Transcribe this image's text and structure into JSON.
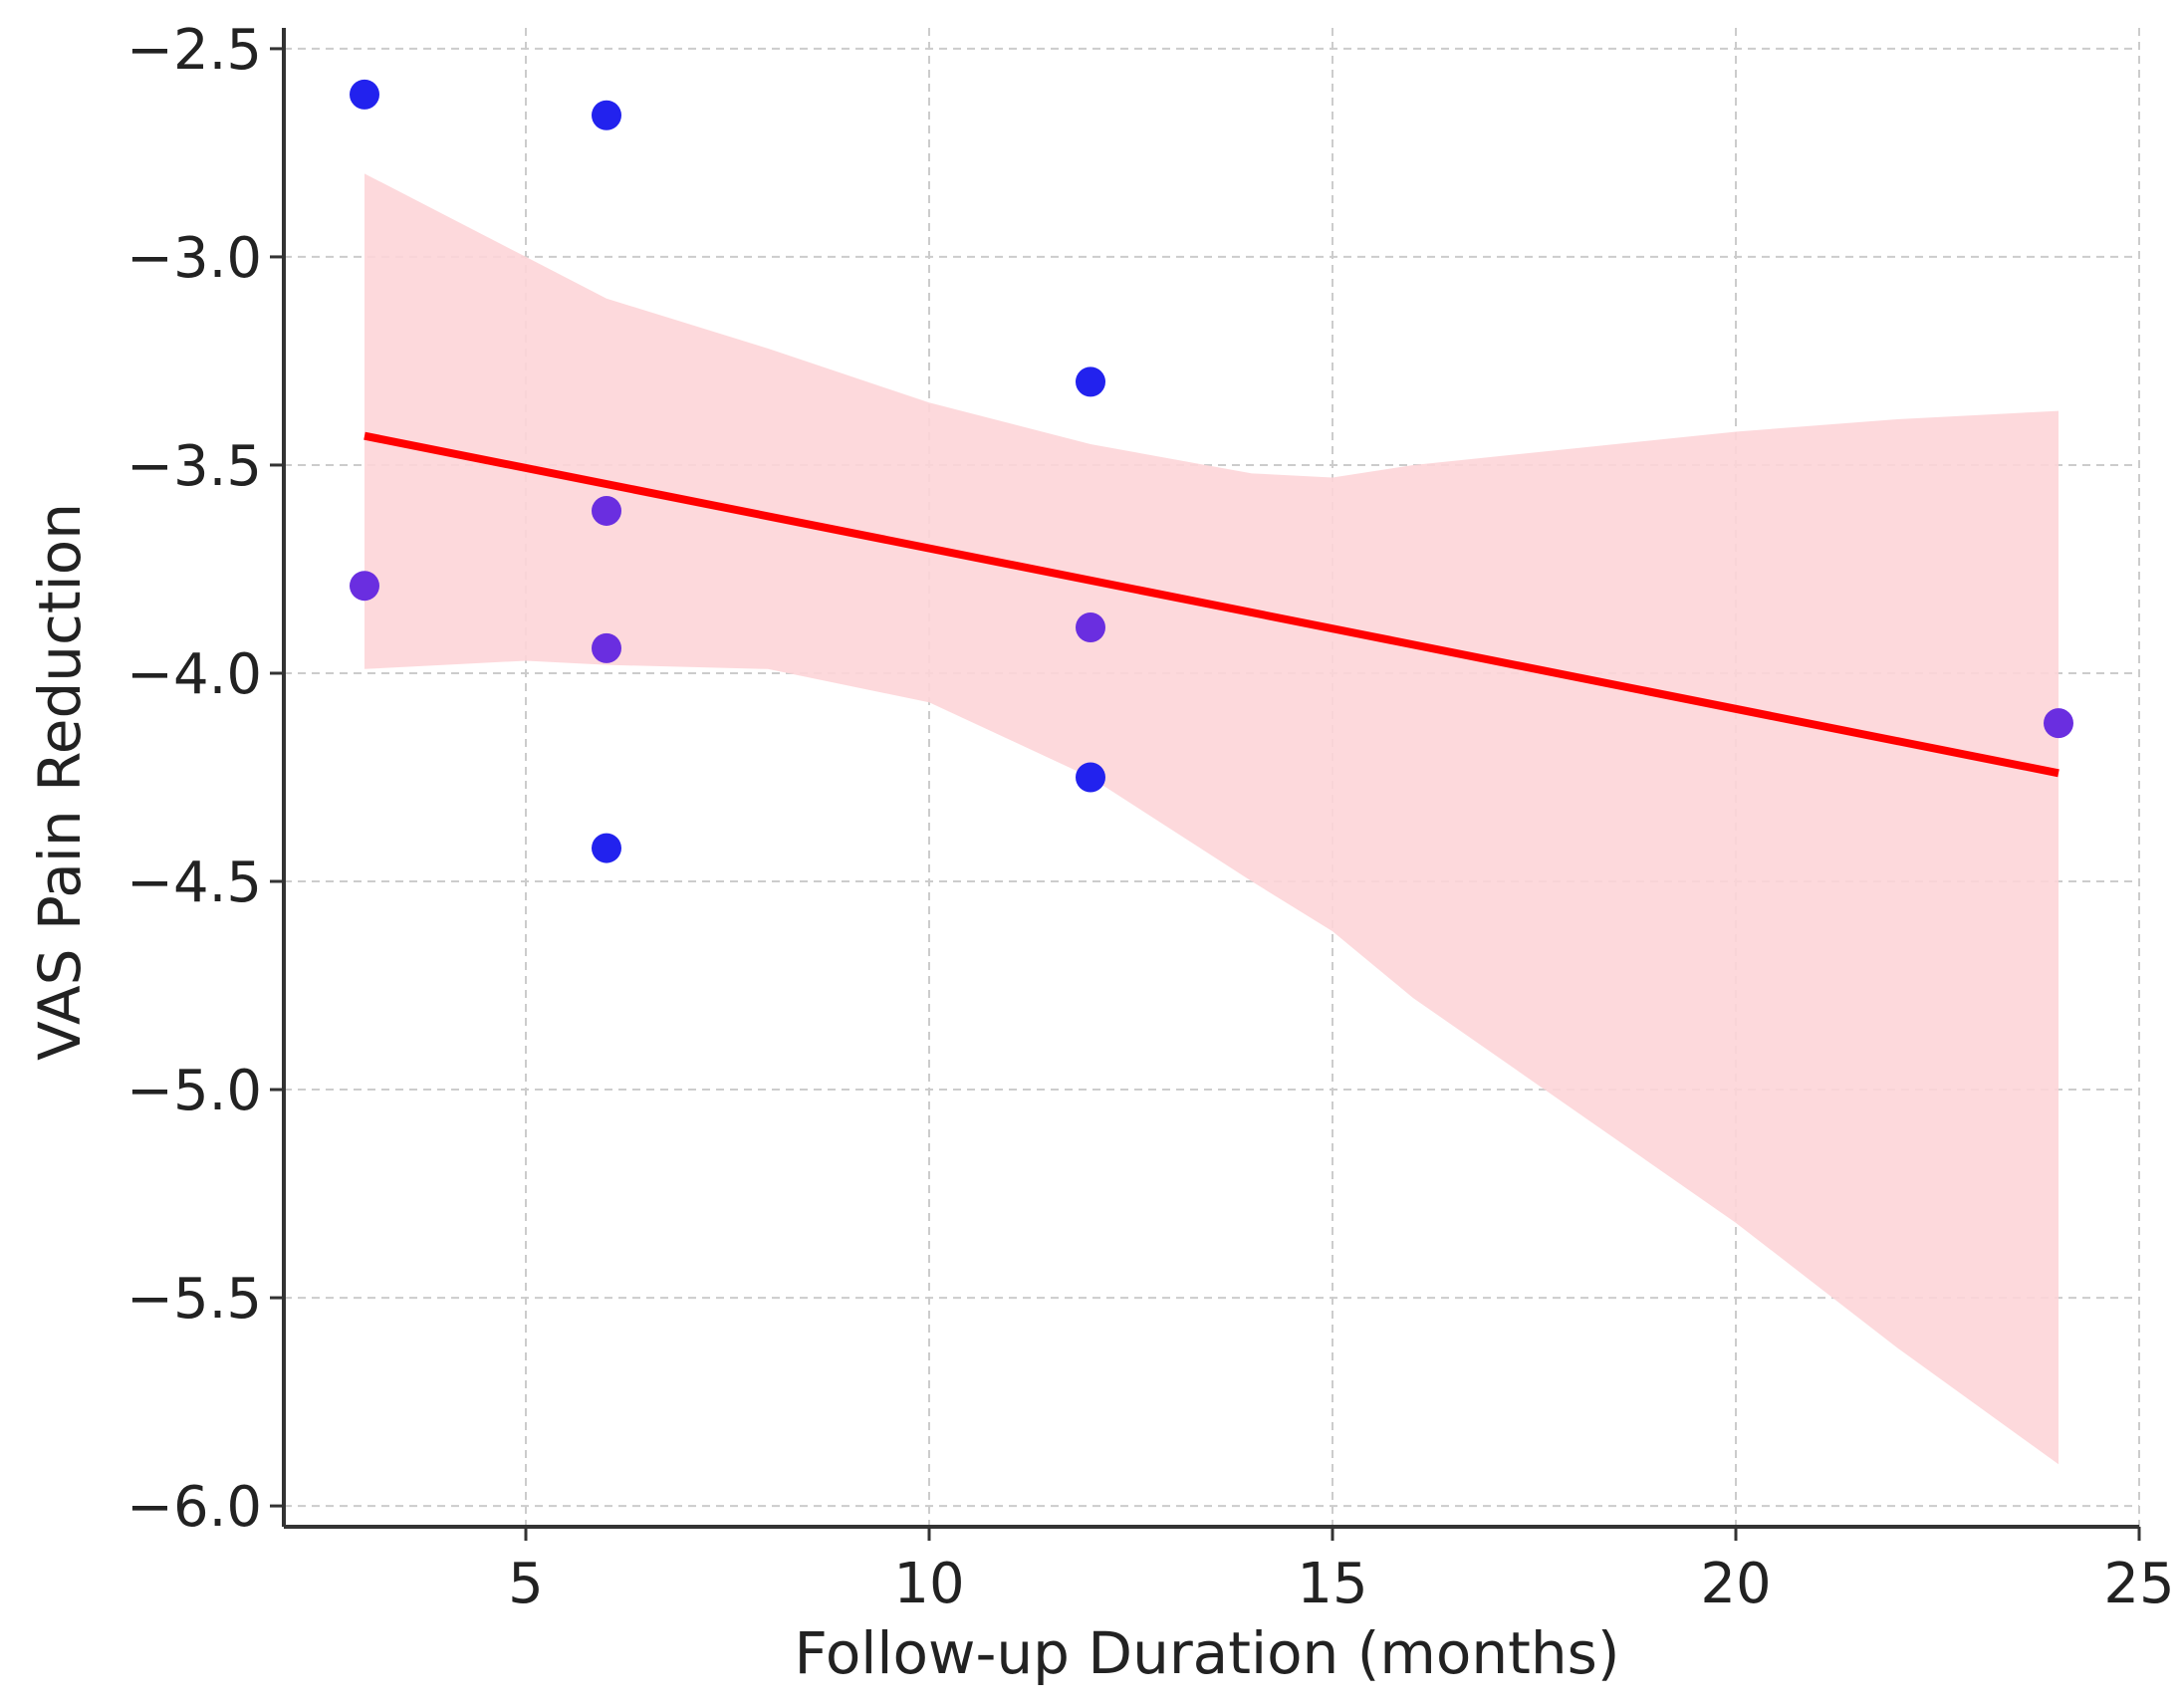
{
  "chart_data": {
    "type": "scatter",
    "title": "",
    "xlabel": "Follow-up Duration (months)",
    "ylabel": "VAS Pain Reduction",
    "xlim": [
      2,
      25
    ],
    "ylim": [
      -6.05,
      -2.45
    ],
    "xticks": [
      5,
      10,
      15,
      20,
      25
    ],
    "yticks": [
      -2.5,
      -3.0,
      -3.5,
      -4.0,
      -4.5,
      -5.0,
      -5.5,
      -6.0
    ],
    "xtick_labels": [
      "5",
      "10",
      "15",
      "20",
      "25"
    ],
    "ytick_labels": [
      "−2.5",
      "−3.0",
      "−3.5",
      "−4.0",
      "−4.5",
      "−5.0",
      "−5.5",
      "−6.0"
    ],
    "grid": true,
    "points": [
      {
        "x": 3,
        "y": -2.61
      },
      {
        "x": 3,
        "y": -3.79
      },
      {
        "x": 6,
        "y": -2.66
      },
      {
        "x": 6,
        "y": -3.61
      },
      {
        "x": 6,
        "y": -3.94
      },
      {
        "x": 6,
        "y": -4.42
      },
      {
        "x": 12,
        "y": -3.3
      },
      {
        "x": 12,
        "y": -3.89
      },
      {
        "x": 12,
        "y": -4.25
      },
      {
        "x": 24,
        "y": -4.12
      }
    ],
    "regression": {
      "x": [
        3,
        24
      ],
      "y": [
        -3.43,
        -4.24
      ]
    },
    "confidence_band": {
      "x": [
        3,
        4,
        5,
        6,
        8,
        10,
        12,
        14,
        15,
        16,
        18,
        20,
        22,
        24
      ],
      "upper": [
        -2.8,
        -2.9,
        -3.0,
        -3.1,
        -3.22,
        -3.35,
        -3.45,
        -3.52,
        -3.53,
        -3.5,
        -3.46,
        -3.42,
        -3.39,
        -3.37
      ],
      "lower": [
        -3.99,
        -3.98,
        -3.97,
        -3.98,
        -3.99,
        -4.07,
        -4.25,
        -4.5,
        -4.62,
        -4.78,
        -5.05,
        -5.32,
        -5.62,
        -5.9
      ]
    },
    "colors": {
      "points": "#2222ee",
      "points_overlap": "#6a2ee0",
      "line": "#ff0000",
      "band": "#fdd5d8",
      "grid": "#cccccc",
      "axis": "#333333"
    }
  }
}
